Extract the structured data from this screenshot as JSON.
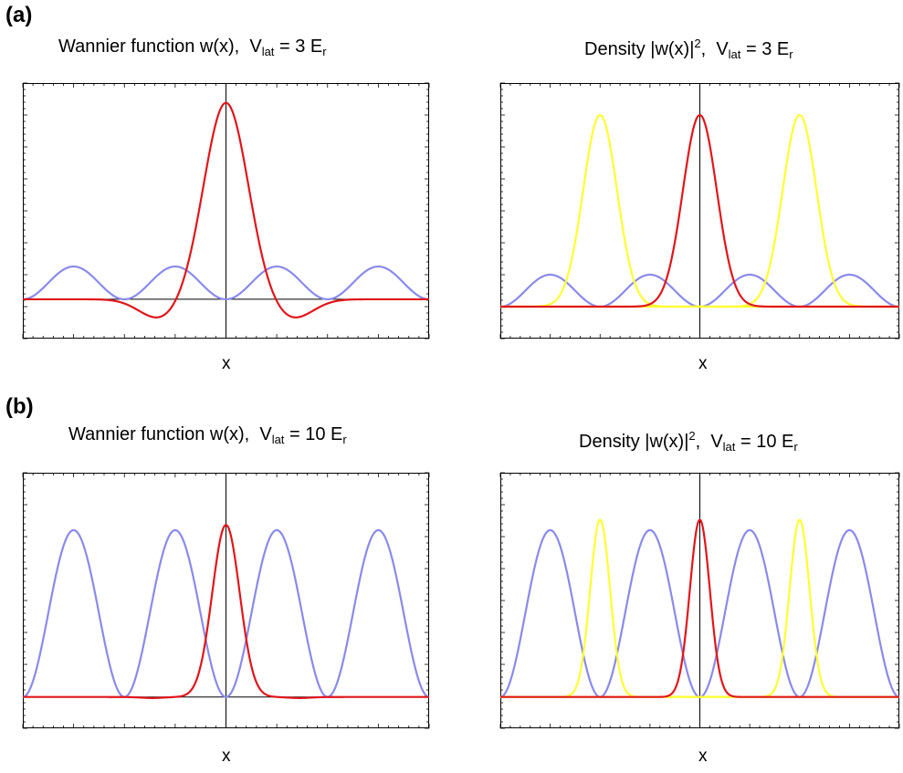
{
  "panel_labels": [
    "(a)",
    "(b)"
  ],
  "titles": {
    "a_left": {
      "main": "Wannier function w(x),",
      "sym": "V",
      "sub": "lat",
      "eq": "= 3 E",
      "sub2": "r"
    },
    "a_right": {
      "main": "Density |w(x)|",
      "sup": "2",
      "main2": ",",
      "sym": "V",
      "sub": "lat",
      "eq": "= 3 E",
      "sub2": "r"
    },
    "b_left": {
      "main": "Wannier function w(x),",
      "sym": "V",
      "sub": "lat",
      "eq": "= 10 E",
      "sub2": "r"
    },
    "b_right": {
      "main": "Density |w(x)|",
      "sup": "2",
      "main2": ",",
      "sym": "V",
      "sub": "lat",
      "eq": "= 10 E",
      "sub2": "r"
    }
  },
  "xlabel": "x",
  "colors": {
    "wannier": "#e0161b",
    "density_neighbors": "#ffff33",
    "lattice_potential": "#8a8aea",
    "axis": "#000000"
  },
  "chart_data": [
    {
      "id": "a_left",
      "type": "line",
      "xlim": [
        -4,
        4
      ],
      "ylim": [
        -0.3,
        1.65
      ],
      "series": [
        {
          "role": "lattice_potential",
          "kind": "potential_profile",
          "relative_height": 0.5
        },
        {
          "role": "wannier",
          "kind": "wannier",
          "V_lat": 3,
          "peak": 1.5,
          "center": 0
        }
      ]
    },
    {
      "id": "a_right",
      "type": "line",
      "xlim": [
        -4,
        4
      ],
      "ylim": [
        -0.25,
        1.75
      ],
      "series": [
        {
          "role": "lattice_potential",
          "kind": "potential_profile",
          "relative_height": 0.5
        },
        {
          "role": "density_neighbors",
          "kind": "density",
          "centers": [
            -2,
            2
          ],
          "peak": 1.5
        },
        {
          "role": "wannier",
          "kind": "density",
          "centers": [
            0
          ],
          "peak": 1.5
        }
      ]
    },
    {
      "id": "b_left",
      "type": "line",
      "xlim": [
        -4,
        4
      ],
      "ylim": [
        -0.3,
        2.15
      ],
      "series": [
        {
          "role": "lattice_potential",
          "kind": "potential_profile",
          "relative_height": 1.0
        },
        {
          "role": "wannier",
          "kind": "wannier",
          "V_lat": 10,
          "peak": 1.65,
          "center": 0
        }
      ]
    },
    {
      "id": "b_right",
      "type": "line",
      "xlim": [
        -4,
        4
      ],
      "ylim": [
        -0.3,
        2.15
      ],
      "series": [
        {
          "role": "lattice_potential",
          "kind": "potential_profile",
          "relative_height": 1.0
        },
        {
          "role": "density_neighbors",
          "kind": "density",
          "centers": [
            -2,
            2
          ],
          "peak": 1.7
        },
        {
          "role": "wannier",
          "kind": "density",
          "centers": [
            0
          ],
          "peak": 1.7
        }
      ]
    }
  ]
}
